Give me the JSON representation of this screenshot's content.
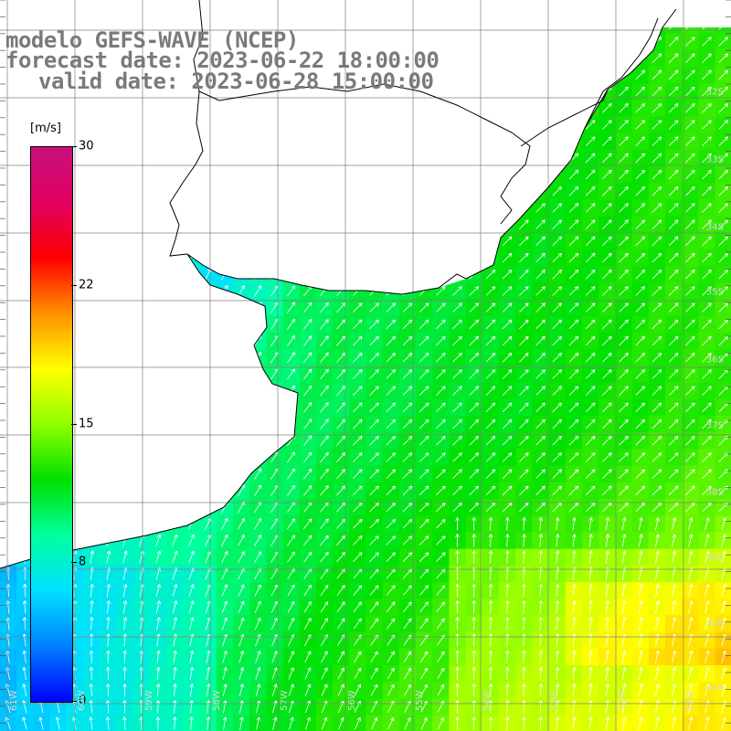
{
  "title": {
    "model": "modelo GEFS-WAVE (NCEP)",
    "forecast": "forecast date: 2023-06-22 18:00:00",
    "valid": "valid date: 2023-06-28 15:00:00"
  },
  "colorbar": {
    "unit": "[m/s]",
    "min": 0,
    "max": 30,
    "ticks": [
      {
        "value": 30,
        "label": "30"
      },
      {
        "value": 22.5,
        "label": "22"
      },
      {
        "value": 15,
        "label": "15"
      },
      {
        "value": 7.5,
        "label": "8"
      },
      {
        "value": 0,
        "label": "0"
      }
    ],
    "colors": [
      "#0000ff",
      "#0080ff",
      "#00e0ff",
      "#00ffa0",
      "#00e000",
      "#90ff00",
      "#ffff00",
      "#ff9000",
      "#ff0000",
      "#e00060",
      "#c8107c"
    ]
  },
  "map": {
    "lat_labels": [
      "32S",
      "33S",
      "34S",
      "35S",
      "36S",
      "37S",
      "38S",
      "39S",
      "40S",
      "41S"
    ],
    "lon_labels": [
      "61W",
      "60W",
      "59W",
      "58W",
      "57W",
      "56W",
      "55W",
      "54W",
      "53W",
      "52W",
      "51W"
    ],
    "land_color": "#ffffff",
    "grid_color": "#808080",
    "coast_color": "#000000"
  }
}
